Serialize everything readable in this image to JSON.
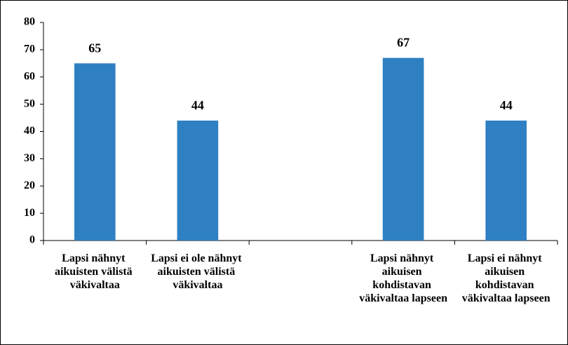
{
  "chart_data": {
    "type": "bar",
    "categories": [
      "Lapsi nähnyt aikuisten välistä väkivaltaa",
      "Lapsi ei ole nähnyt aikuisten välistä väkivaltaa",
      null,
      "Lapsi nähnyt aikuisen kohdistavan väkivaltaa lapseen",
      "Lapsi ei nähnyt aikuisen kohdistavan väkivaltaa lapseen"
    ],
    "values": [
      65,
      44,
      null,
      67,
      44
    ],
    "color": "#2f80c2",
    "ylim": [
      0,
      80
    ],
    "yticks": [
      0,
      10,
      20,
      30,
      40,
      50,
      60,
      70,
      80
    ],
    "grid": false
  }
}
